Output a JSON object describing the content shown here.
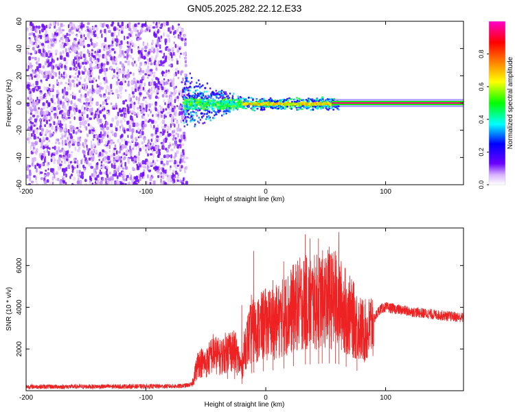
{
  "title": "GN05.2025.282.22.12.E33",
  "chart_data": [
    {
      "type": "heatmap",
      "xlabel": "Height of straight line (km)",
      "ylabel": "Frequency (Hz)",
      "xlim": [
        -200,
        165
      ],
      "ylim": [
        -60,
        60
      ],
      "x_ticks": [
        -200,
        -100,
        0,
        100
      ],
      "y_ticks": [
        -60,
        -40,
        -20,
        0,
        20,
        40,
        60
      ],
      "colorbar": {
        "label": "Normalized spectral amplitude",
        "range": [
          0,
          1
        ],
        "ticks": [
          "0.0",
          "0.2",
          "0.4",
          "0.6",
          "0.8"
        ],
        "colormap": [
          "#ffffff",
          "#6a00ff",
          "#0000ff",
          "#00ffff",
          "#00ff00",
          "#ffff00",
          "#ff8000",
          "#ff0000",
          "#ff00cc"
        ]
      },
      "regions": [
        {
          "x": [
            -200,
            -67
          ],
          "y": [
            -60,
            60
          ],
          "amplitude": 0.12,
          "pattern": "noise"
        },
        {
          "x": [
            -70,
            -20
          ],
          "y": [
            -15,
            25
          ],
          "amplitude": 0.35,
          "pattern": "spread"
        },
        {
          "x": [
            -20,
            60
          ],
          "y": [
            -5,
            5
          ],
          "amplitude": 0.55,
          "pattern": "band"
        },
        {
          "x": [
            55,
            165
          ],
          "y": [
            -1.5,
            1.5
          ],
          "amplitude": 0.95,
          "pattern": "line"
        }
      ]
    },
    {
      "type": "line",
      "xlabel": "Height of straight line (km)",
      "ylabel": "SNR (10 * v/v)",
      "xlim": [
        -200,
        165
      ],
      "ylim": [
        0,
        7800
      ],
      "x_ticks": [
        -200,
        -100,
        0,
        100
      ],
      "y_ticks": [
        2000,
        4000,
        6000
      ],
      "series": [
        {
          "color": "#ee2222",
          "points": [
            [
              -200,
              150
            ],
            [
              -160,
              150
            ],
            [
              -120,
              160
            ],
            [
              -80,
              170
            ],
            [
              -70,
              180
            ],
            [
              -62,
              250
            ],
            [
              -56,
              1400
            ],
            [
              -50,
              1300
            ],
            [
              -44,
              1800
            ],
            [
              -38,
              1600
            ],
            [
              -30,
              2000
            ],
            [
              -25,
              1800
            ],
            [
              -20,
              1100
            ],
            [
              -17,
              2200
            ],
            [
              -12,
              2800
            ],
            [
              -5,
              3000
            ],
            [
              0,
              3200
            ],
            [
              10,
              3300
            ],
            [
              20,
              3800
            ],
            [
              30,
              4200
            ],
            [
              40,
              4200
            ],
            [
              50,
              4400
            ],
            [
              60,
              4300
            ],
            [
              70,
              3600
            ],
            [
              80,
              2900
            ],
            [
              85,
              2800
            ],
            [
              90,
              3400
            ],
            [
              95,
              3900
            ],
            [
              100,
              4000
            ],
            [
              120,
              3800
            ],
            [
              140,
              3650
            ],
            [
              165,
              3500
            ]
          ],
          "peaks": [
            [
              -32,
              2500
            ],
            [
              -26,
              2600
            ],
            [
              -20,
              4100
            ],
            [
              -12,
              4600
            ],
            [
              -10,
              6700
            ],
            [
              -2,
              4800
            ],
            [
              6,
              5300
            ],
            [
              15,
              6200
            ],
            [
              23,
              5500
            ],
            [
              33,
              7500
            ],
            [
              37,
              7300
            ],
            [
              44,
              7300
            ],
            [
              47,
              5800
            ],
            [
              53,
              6900
            ],
            [
              58,
              6700
            ],
            [
              61,
              7600
            ],
            [
              67,
              4700
            ],
            [
              76,
              4500
            ]
          ]
        }
      ]
    }
  ]
}
